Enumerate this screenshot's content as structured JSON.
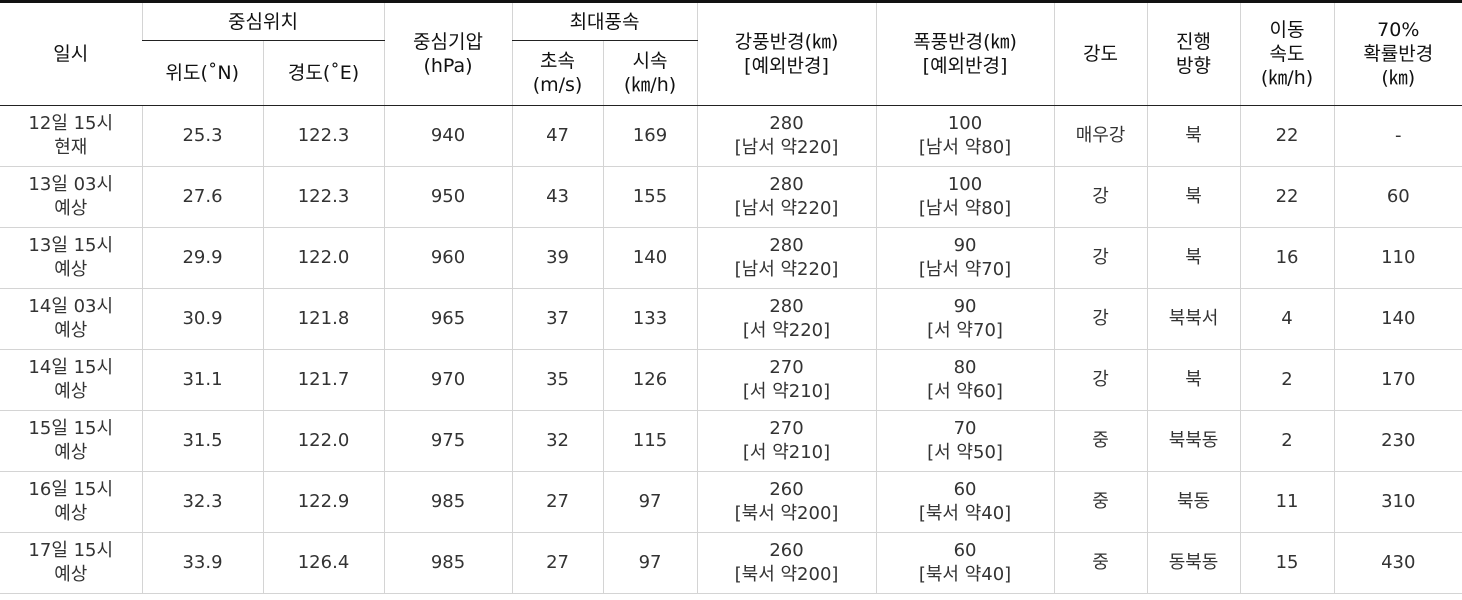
{
  "headers": {
    "datetime": "일시",
    "center_position": "중심위치",
    "lat": "위도(˚N)",
    "lon": "경도(˚E)",
    "pressure": [
      "중심기압",
      "(hPa)"
    ],
    "max_wind": "최대풍속",
    "wind_ms": [
      "초속",
      "(m/s)"
    ],
    "wind_kmh": [
      "시속",
      "(㎞/h)"
    ],
    "gale_radius": [
      "강풍반경(㎞)",
      "[예외반경]"
    ],
    "storm_radius": [
      "폭풍반경(㎞)",
      "[예외반경]"
    ],
    "intensity": "강도",
    "direction": [
      "진행",
      "방향"
    ],
    "speed": [
      "이동",
      "속도",
      "(㎞/h)"
    ],
    "prob_radius": [
      "70%",
      "확률반경",
      "(㎞)"
    ]
  },
  "rows": [
    {
      "time": [
        "12일 15시",
        "현재"
      ],
      "lat": "25.3",
      "lon": "122.3",
      "pressure": "940",
      "ms": "47",
      "kmh": "169",
      "gale": [
        "280",
        "[남서 약220]"
      ],
      "storm": [
        "100",
        "[남서 약80]"
      ],
      "intensity": "매우강",
      "direction": "북",
      "speed": "22",
      "prob": "-"
    },
    {
      "time": [
        "13일 03시",
        "예상"
      ],
      "lat": "27.6",
      "lon": "122.3",
      "pressure": "950",
      "ms": "43",
      "kmh": "155",
      "gale": [
        "280",
        "[남서 약220]"
      ],
      "storm": [
        "100",
        "[남서 약80]"
      ],
      "intensity": "강",
      "direction": "북",
      "speed": "22",
      "prob": "60"
    },
    {
      "time": [
        "13일 15시",
        "예상"
      ],
      "lat": "29.9",
      "lon": "122.0",
      "pressure": "960",
      "ms": "39",
      "kmh": "140",
      "gale": [
        "280",
        "[남서 약220]"
      ],
      "storm": [
        "90",
        "[남서 약70]"
      ],
      "intensity": "강",
      "direction": "북",
      "speed": "16",
      "prob": "110"
    },
    {
      "time": [
        "14일 03시",
        "예상"
      ],
      "lat": "30.9",
      "lon": "121.8",
      "pressure": "965",
      "ms": "37",
      "kmh": "133",
      "gale": [
        "280",
        "[서 약220]"
      ],
      "storm": [
        "90",
        "[서 약70]"
      ],
      "intensity": "강",
      "direction": "북북서",
      "speed": "4",
      "prob": "140"
    },
    {
      "time": [
        "14일 15시",
        "예상"
      ],
      "lat": "31.1",
      "lon": "121.7",
      "pressure": "970",
      "ms": "35",
      "kmh": "126",
      "gale": [
        "270",
        "[서 약210]"
      ],
      "storm": [
        "80",
        "[서 약60]"
      ],
      "intensity": "강",
      "direction": "북",
      "speed": "2",
      "prob": "170"
    },
    {
      "time": [
        "15일 15시",
        "예상"
      ],
      "lat": "31.5",
      "lon": "122.0",
      "pressure": "975",
      "ms": "32",
      "kmh": "115",
      "gale": [
        "270",
        "[서 약210]"
      ],
      "storm": [
        "70",
        "[서 약50]"
      ],
      "intensity": "중",
      "direction": "북북동",
      "speed": "2",
      "prob": "230"
    },
    {
      "time": [
        "16일 15시",
        "예상"
      ],
      "lat": "32.3",
      "lon": "122.9",
      "pressure": "985",
      "ms": "27",
      "kmh": "97",
      "gale": [
        "260",
        "[북서 약200]"
      ],
      "storm": [
        "60",
        "[북서 약40]"
      ],
      "intensity": "중",
      "direction": "북동",
      "speed": "11",
      "prob": "310"
    },
    {
      "time": [
        "17일 15시",
        "예상"
      ],
      "lat": "33.9",
      "lon": "126.4",
      "pressure": "985",
      "ms": "27",
      "kmh": "97",
      "gale": [
        "260",
        "[북서 약200]"
      ],
      "storm": [
        "60",
        "[북서 약40]"
      ],
      "intensity": "중",
      "direction": "동북동",
      "speed": "15",
      "prob": "430"
    }
  ]
}
